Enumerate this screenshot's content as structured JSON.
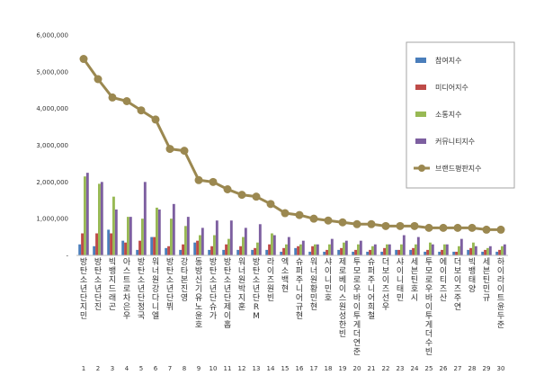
{
  "chart_data": {
    "type": "bar",
    "title": "",
    "xlabel": "",
    "ylabel": "",
    "ylim": [
      0,
      6000000
    ],
    "yticks": [
      0,
      1000000,
      2000000,
      3000000,
      4000000,
      5000000,
      6000000
    ],
    "ytick_labels": [
      "-",
      "1,000,000",
      "2,000,000",
      "3,000,000",
      "4,000,000",
      "5,000,000",
      "6,000,000"
    ],
    "grid": false,
    "legend_position": "top-right",
    "ranks": [
      "1",
      "2",
      "3",
      "4",
      "5",
      "6",
      "7",
      "8",
      "9",
      "10",
      "11",
      "12",
      "13",
      "14",
      "15",
      "16",
      "17",
      "18",
      "19",
      "20",
      "21",
      "22",
      "23",
      "24",
      "25",
      "26",
      "27",
      "28",
      "29",
      "30"
    ],
    "categories": [
      "방탄소년단 지민",
      "방탄소년단 진",
      "빅뱅 지드래곤",
      "아스트로 차은우",
      "방탄소년단 정국",
      "워너원 강다니엘",
      "방탄소년단 뷔",
      "강타 본진영",
      "동방신기 유노윤호",
      "방탄소년단 슈가",
      "방탄소년단 제이홉",
      "워너원 박지훈",
      "방탄소년단 RM",
      "라이즈 원빈",
      "엑소 백현",
      "슈퍼주니어 규현",
      "워너원 황민현",
      "샤이니 민호",
      "제로베이스원 성한빈",
      "투모로우바이투게더 연준",
      "슈퍼주니어 희철",
      "더보이즈 선우",
      "샤이니 태민",
      "세븐틴 호시",
      "투모로우바이투게더 수빈",
      "에이티즈 산",
      "더보이즈 주연",
      "빅뱅 태양",
      "세븐틴 민규",
      "하이라이트 윤두준"
    ],
    "series": [
      {
        "name": "참여지수",
        "kind": "bar",
        "color": "#4a7ebb",
        "values": [
          300000,
          250000,
          700000,
          400000,
          150000,
          500000,
          200000,
          150000,
          350000,
          150000,
          150000,
          150000,
          150000,
          150000,
          100000,
          200000,
          100000,
          100000,
          150000,
          100000,
          100000,
          100000,
          150000,
          150000,
          100000,
          100000,
          100000,
          150000,
          100000,
          100000
        ]
      },
      {
        "name": "미디어지수",
        "kind": "bar",
        "color": "#be4b48",
        "values": [
          600000,
          600000,
          600000,
          350000,
          400000,
          500000,
          250000,
          300000,
          400000,
          250000,
          300000,
          250000,
          200000,
          300000,
          200000,
          250000,
          250000,
          150000,
          200000,
          150000,
          150000,
          200000,
          150000,
          200000,
          150000,
          150000,
          100000,
          200000,
          150000,
          150000
        ]
      },
      {
        "name": "소통지수",
        "kind": "bar",
        "color": "#98b954",
        "values": [
          2150000,
          1950000,
          1600000,
          1050000,
          1000000,
          1300000,
          1000000,
          800000,
          550000,
          550000,
          450000,
          500000,
          350000,
          600000,
          300000,
          300000,
          300000,
          300000,
          350000,
          300000,
          250000,
          300000,
          300000,
          300000,
          350000,
          300000,
          250000,
          350000,
          200000,
          250000
        ]
      },
      {
        "name": "커뮤니티지수",
        "kind": "bar",
        "color": "#7d5fa0",
        "values": [
          2250000,
          2000000,
          1250000,
          1050000,
          2000000,
          1250000,
          1400000,
          1050000,
          750000,
          950000,
          950000,
          750000,
          850000,
          550000,
          500000,
          400000,
          300000,
          450000,
          400000,
          400000,
          300000,
          300000,
          550000,
          500000,
          300000,
          300000,
          450000,
          250000,
          250000,
          300000
        ]
      },
      {
        "name": "브랜드평판지수",
        "kind": "line",
        "color": "#9b8850",
        "values": [
          5350000,
          4800000,
          4300000,
          4200000,
          3950000,
          3700000,
          2900000,
          2850000,
          2050000,
          2000000,
          1800000,
          1650000,
          1600000,
          1400000,
          1150000,
          1100000,
          1000000,
          950000,
          900000,
          850000,
          850000,
          800000,
          800000,
          800000,
          750000,
          750000,
          750000,
          750000,
          700000,
          700000
        ]
      }
    ]
  }
}
